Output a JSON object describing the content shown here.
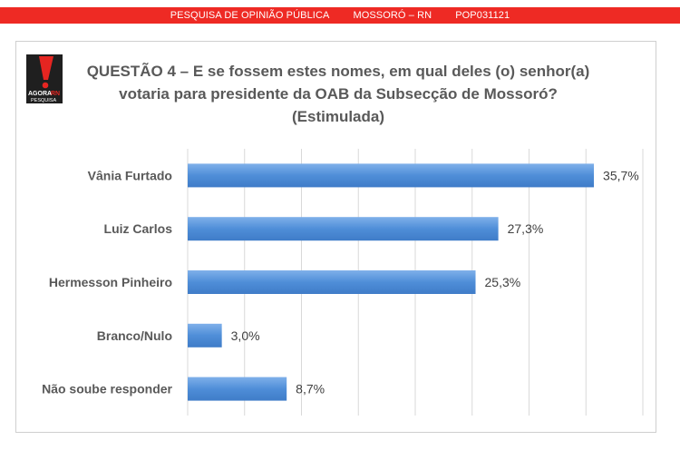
{
  "header": {
    "left": "PESQUISA DE OPINIÃO PÚBLICA",
    "middle": "MOSSORÓ – RN",
    "right": "POP031121"
  },
  "logo": {
    "text_top": "AGORA",
    "text_top_accent": "RN",
    "text_bottom": "PESQUISA",
    "accent_color": "#e52521",
    "dark_color": "#1f1f1f"
  },
  "chart_data": {
    "type": "bar",
    "orientation": "horizontal",
    "title_lines": [
      "QUESTÃO 4 – E se fossem estes nomes, em qual deles (o) senhor(a)",
      "votaria para presidente da OAB da Subsecção de Mossoró?",
      "(Estimulada)"
    ],
    "categories": [
      "Vânia Furtado",
      "Luiz Carlos",
      "Hermesson Pinheiro",
      "Branco/Nulo",
      "Não soube responder"
    ],
    "values": [
      35.7,
      27.3,
      25.3,
      3.0,
      8.7
    ],
    "value_labels": [
      "35,7%",
      "27,3%",
      "25,3%",
      "3,0%",
      "8,7%"
    ],
    "xlim": [
      0,
      40
    ],
    "x_gridlines": [
      0,
      5,
      10,
      15,
      20,
      25,
      30,
      35,
      40
    ],
    "grid": true,
    "legend": "none",
    "bar_color": "#4f8ed8"
  }
}
